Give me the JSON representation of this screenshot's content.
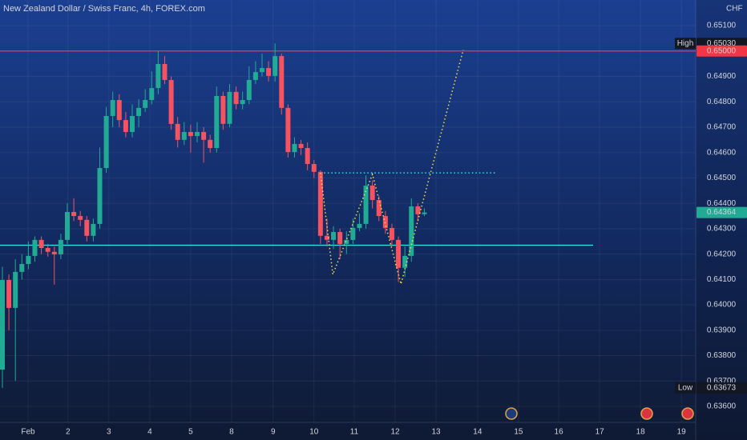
{
  "chart_data": {
    "type": "candlestick",
    "title": "New Zealand Dollar / Swiss Franc, 4h, FOREX.com",
    "currency": "CHF",
    "up_color": "#22ab94",
    "down_color": "#f7525f",
    "open": [
      0.63745,
      0.64098,
      0.63988,
      0.6413,
      0.64161,
      0.64193,
      0.64256,
      0.64224,
      0.64209,
      0.64199,
      0.64256,
      0.64366,
      0.6435,
      0.64335,
      0.64272,
      0.64319,
      0.64539,
      0.64744,
      0.64807,
      0.64728,
      0.64681,
      0.64744,
      0.64776,
      0.64807,
      0.64854,
      0.64949,
      0.64886,
      0.64713,
      0.6465,
      0.64681,
      0.64665,
      0.64681,
      0.6465,
      0.64618,
      0.64823,
      0.64713,
      0.64839,
      0.64791,
      0.64807,
      0.64886,
      0.64917,
      0.64933,
      0.64902,
      0.6498,
      0.64776,
      0.64602,
      0.64634,
      0.64618,
      0.64555,
      0.64524,
      0.64272,
      0.64256,
      0.64287,
      0.6424,
      0.64256,
      0.64303,
      0.64319,
      0.6447,
      0.64413,
      0.6435,
      0.64303,
      0.64256,
      0.64146,
      0.64193,
      0.64388,
      0.64357
    ],
    "high": [
      0.6415,
      0.6412,
      0.6418,
      0.642,
      0.6425,
      0.6427,
      0.6427,
      0.6424,
      0.6423,
      0.6428,
      0.644,
      0.6442,
      0.6437,
      0.6435,
      0.6434,
      0.6462,
      0.6478,
      0.6484,
      0.6483,
      0.6476,
      0.6479,
      0.6481,
      0.6485,
      0.6492,
      0.65,
      0.6498,
      0.649,
      0.6474,
      0.6472,
      0.6471,
      0.6472,
      0.647,
      0.6467,
      0.6486,
      0.6484,
      0.6487,
      0.6486,
      0.6484,
      0.6494,
      0.6496,
      0.6499,
      0.6496,
      0.6503,
      0.6499,
      0.6479,
      0.6466,
      0.6465,
      0.6464,
      0.6457,
      0.6453,
      0.6434,
      0.6431,
      0.643,
      0.6429,
      0.6434,
      0.6436,
      0.6451,
      0.6449,
      0.6443,
      0.6437,
      0.6432,
      0.6427,
      0.6423,
      0.6442,
      0.644,
      0.6438
    ],
    "low": [
      0.63673,
      0.639,
      0.637,
      0.641,
      0.6414,
      0.6417,
      0.642,
      0.6419,
      0.6408,
      0.6418,
      0.6424,
      0.6433,
      0.6431,
      0.6425,
      0.6425,
      0.643,
      0.6452,
      0.647,
      0.647,
      0.6466,
      0.6466,
      0.647,
      0.6476,
      0.6479,
      0.6483,
      0.6487,
      0.6469,
      0.6462,
      0.6463,
      0.646,
      0.6464,
      0.6456,
      0.646,
      0.646,
      0.6469,
      0.647,
      0.6477,
      0.6477,
      0.6479,
      0.6487,
      0.649,
      0.6488,
      0.6488,
      0.6475,
      0.6458,
      0.6458,
      0.6459,
      0.6453,
      0.645,
      0.6424,
      0.6423,
      0.6422,
      0.6418,
      0.642,
      0.6424,
      0.6429,
      0.643,
      0.6438,
      0.6433,
      0.6428,
      0.6423,
      0.6409,
      0.6411,
      0.6417,
      0.6433,
      0.6435
    ],
    "close": [
      0.64098,
      0.63988,
      0.6413,
      0.64161,
      0.64193,
      0.64256,
      0.64224,
      0.64209,
      0.64199,
      0.64256,
      0.64366,
      0.6435,
      0.64335,
      0.64272,
      0.64319,
      0.64539,
      0.64744,
      0.64807,
      0.64728,
      0.64681,
      0.64744,
      0.64776,
      0.64807,
      0.64854,
      0.64949,
      0.64886,
      0.64713,
      0.6465,
      0.64681,
      0.64665,
      0.64681,
      0.6465,
      0.64618,
      0.64823,
      0.64713,
      0.64839,
      0.64791,
      0.64807,
      0.64886,
      0.64917,
      0.64933,
      0.64902,
      0.6498,
      0.64776,
      0.64602,
      0.64634,
      0.64618,
      0.64555,
      0.64524,
      0.64272,
      0.64256,
      0.64287,
      0.6424,
      0.64256,
      0.64303,
      0.64319,
      0.6447,
      0.64413,
      0.6435,
      0.64303,
      0.64256,
      0.64146,
      0.64193,
      0.64388,
      0.64357,
      0.64364
    ],
    "xlim": [
      -0.37,
      106.8
    ],
    "xticks": [
      {
        "value": 3.95,
        "label": "Feb"
      },
      {
        "value": 10.1,
        "label": "2"
      },
      {
        "value": 16.4,
        "label": "3"
      },
      {
        "value": 22.7,
        "label": "4"
      },
      {
        "value": 29.0,
        "label": "5"
      },
      {
        "value": 35.3,
        "label": "8"
      },
      {
        "value": 41.7,
        "label": "9"
      },
      {
        "value": 48.0,
        "label": "10"
      },
      {
        "value": 54.2,
        "label": "11"
      },
      {
        "value": 60.5,
        "label": "12"
      },
      {
        "value": 66.8,
        "label": "13"
      },
      {
        "value": 73.2,
        "label": "14"
      },
      {
        "value": 79.5,
        "label": "15"
      },
      {
        "value": 85.7,
        "label": "16"
      },
      {
        "value": 92.0,
        "label": "17"
      },
      {
        "value": 98.3,
        "label": "18"
      },
      {
        "value": 104.6,
        "label": "19"
      }
    ],
    "ylim": [
      0.63537,
      0.65201
    ],
    "yticks": [
      {
        "value": 0.636,
        "label": "0.63600"
      },
      {
        "value": 0.637,
        "label": "0.63700"
      },
      {
        "value": 0.638,
        "label": "0.63800"
      },
      {
        "value": 0.639,
        "label": "0.63900"
      },
      {
        "value": 0.64,
        "label": "0.64000"
      },
      {
        "value": 0.641,
        "label": "0.64100"
      },
      {
        "value": 0.642,
        "label": "0.64200"
      },
      {
        "value": 0.643,
        "label": "0.64300"
      },
      {
        "value": 0.644,
        "label": "0.64400"
      },
      {
        "value": 0.645,
        "label": "0.64500"
      },
      {
        "value": 0.646,
        "label": "0.64600"
      },
      {
        "value": 0.647,
        "label": "0.64700"
      },
      {
        "value": 0.648,
        "label": "0.64800"
      },
      {
        "value": 0.649,
        "label": "0.64900"
      },
      {
        "value": 0.65,
        "label": "0.65000"
      },
      {
        "value": 0.651,
        "label": "0.65100"
      }
    ],
    "grid": true,
    "levels": [
      {
        "value": 0.65,
        "color": "#f23645",
        "style": "solid",
        "from": -0.37,
        "to": 106.8
      },
      {
        "value": 0.64235,
        "color": "#2ee6e6",
        "style": "solid",
        "from": -0.37,
        "to": 91
      },
      {
        "value": 0.6452,
        "color": "#2ee6e6",
        "style": "dotted",
        "from": 49,
        "to": 76
      }
    ],
    "path_drawing": {
      "color": "#f5e04a",
      "x": [
        49,
        50.9,
        57,
        61.4,
        71
      ],
      "y": [
        0.6452,
        0.6412,
        0.64514,
        0.64082,
        0.65005
      ]
    },
    "price_labels": [
      {
        "name": "High",
        "value": 0.6503,
        "label": "0.65030",
        "color": "#131722"
      },
      {
        "value": 0.65,
        "label": "0.65000",
        "color": "#f23645"
      },
      {
        "value": 0.64364,
        "label": "0.64364",
        "color": "#22ab94"
      },
      {
        "name": "Low",
        "value": 0.63673,
        "label": "0.63673",
        "color": "#131722"
      }
    ]
  }
}
